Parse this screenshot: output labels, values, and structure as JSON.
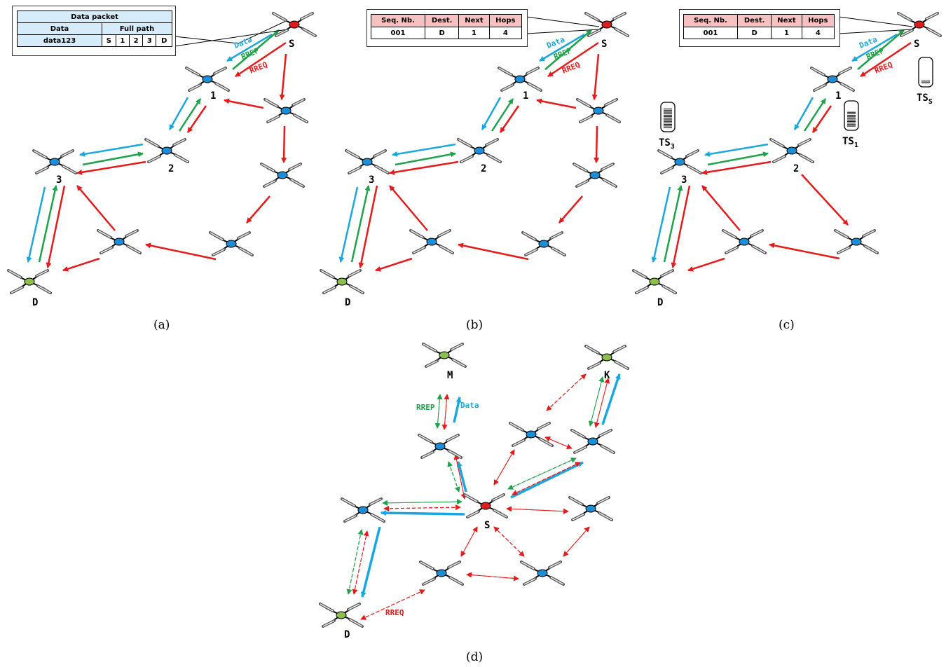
{
  "panel_a": {
    "caption": "(a)",
    "packet": {
      "title": "Data packet",
      "col_data": "Data",
      "col_path": "Full path",
      "data_value": "data123",
      "path": [
        "S",
        "1",
        "2",
        "3",
        "D"
      ]
    },
    "nodes": {
      "source": "S",
      "n1": "1",
      "n2": "2",
      "n3": "3",
      "dest": "D"
    },
    "msg_data": "Data",
    "msg_rrep": "RREP",
    "msg_rreq": "RREQ"
  },
  "panel_b": {
    "caption": "(b)",
    "table": {
      "headers": [
        "Seq. Nb.",
        "Dest.",
        "Next",
        "Hops"
      ],
      "row": [
        "001",
        "D",
        "1",
        "4"
      ]
    },
    "nodes": {
      "source": "S",
      "n1": "1",
      "n2": "2",
      "n3": "3",
      "dest": "D"
    },
    "msg_data": "Data",
    "msg_rrep": "RREP",
    "msg_rreq": "RREQ"
  },
  "panel_c": {
    "caption": "(c)",
    "table": {
      "headers": [
        "Seq. Nb.",
        "Dest.",
        "Next",
        "Hops"
      ],
      "row": [
        "001",
        "D",
        "1",
        "4"
      ]
    },
    "nodes": {
      "source": "S",
      "n1": "1",
      "n2": "2",
      "n3": "3",
      "dest": "D"
    },
    "msg_data": "Data",
    "msg_rrep": "RREP",
    "msg_rreq": "RREQ",
    "buffers": {
      "ts_s": "TS",
      "ts_s_sub": "S",
      "ts_1": "TS",
      "ts_1_sub": "1",
      "ts_3": "TS",
      "ts_3_sub": "3"
    }
  },
  "panel_d": {
    "caption": "(d)",
    "nodes": {
      "source": "S",
      "dest_m": "M",
      "dest_k": "K",
      "dest_d": "D"
    },
    "msg_rrep": "RREP",
    "msg_data": "Data",
    "msg_rreq": "RREQ"
  },
  "colors": {
    "source": "#e01b1b",
    "relay": "#1a8fd8",
    "dest": "#8cc04b",
    "data": "#1aa7e0",
    "rrep": "#1ea24a",
    "rreq": "#e51b1b"
  }
}
